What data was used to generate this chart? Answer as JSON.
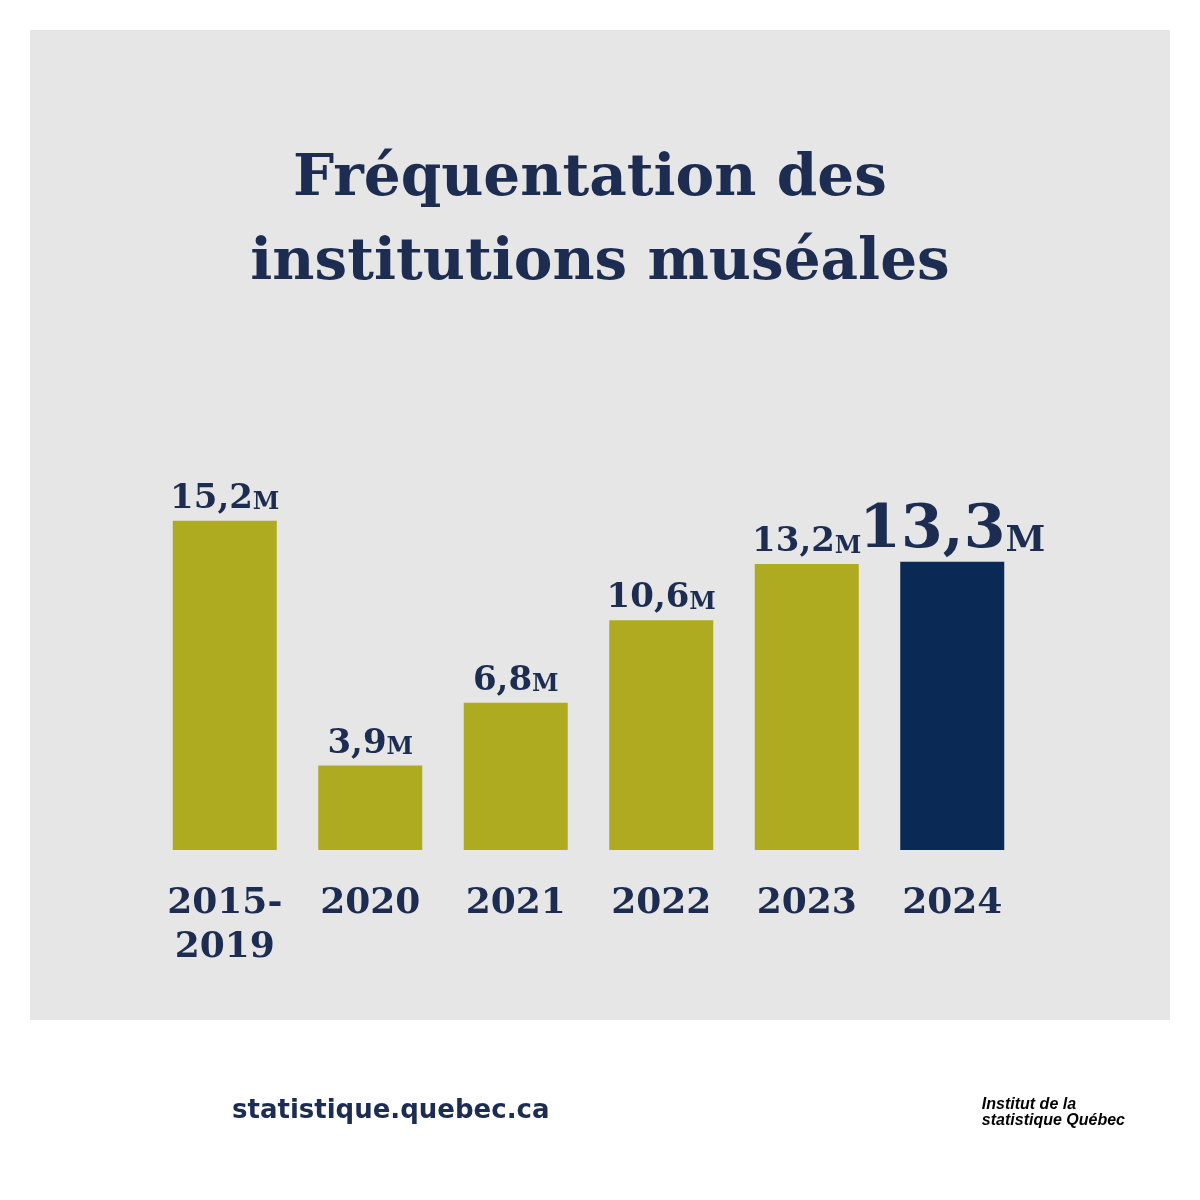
{
  "chart_data": {
    "type": "bar",
    "title": "Fréquentation des institutions muséales",
    "categories": [
      "2015-2019",
      "2020",
      "2021",
      "2022",
      "2023",
      "2024"
    ],
    "values": [
      15.2,
      3.9,
      6.8,
      10.6,
      13.2,
      13.3
    ],
    "value_labels": [
      "15,2M",
      "3,9M",
      "6,8M",
      "10,6M",
      "13,2M",
      "13,3M"
    ],
    "colors": [
      "#afab21",
      "#afab21",
      "#afab21",
      "#afab21",
      "#afab21",
      "#0a2a55"
    ],
    "relative": false,
    "annotations": [
      "statistique.quebec.ca",
      "Institut de la statistique Québec"
    ]
  }
}
